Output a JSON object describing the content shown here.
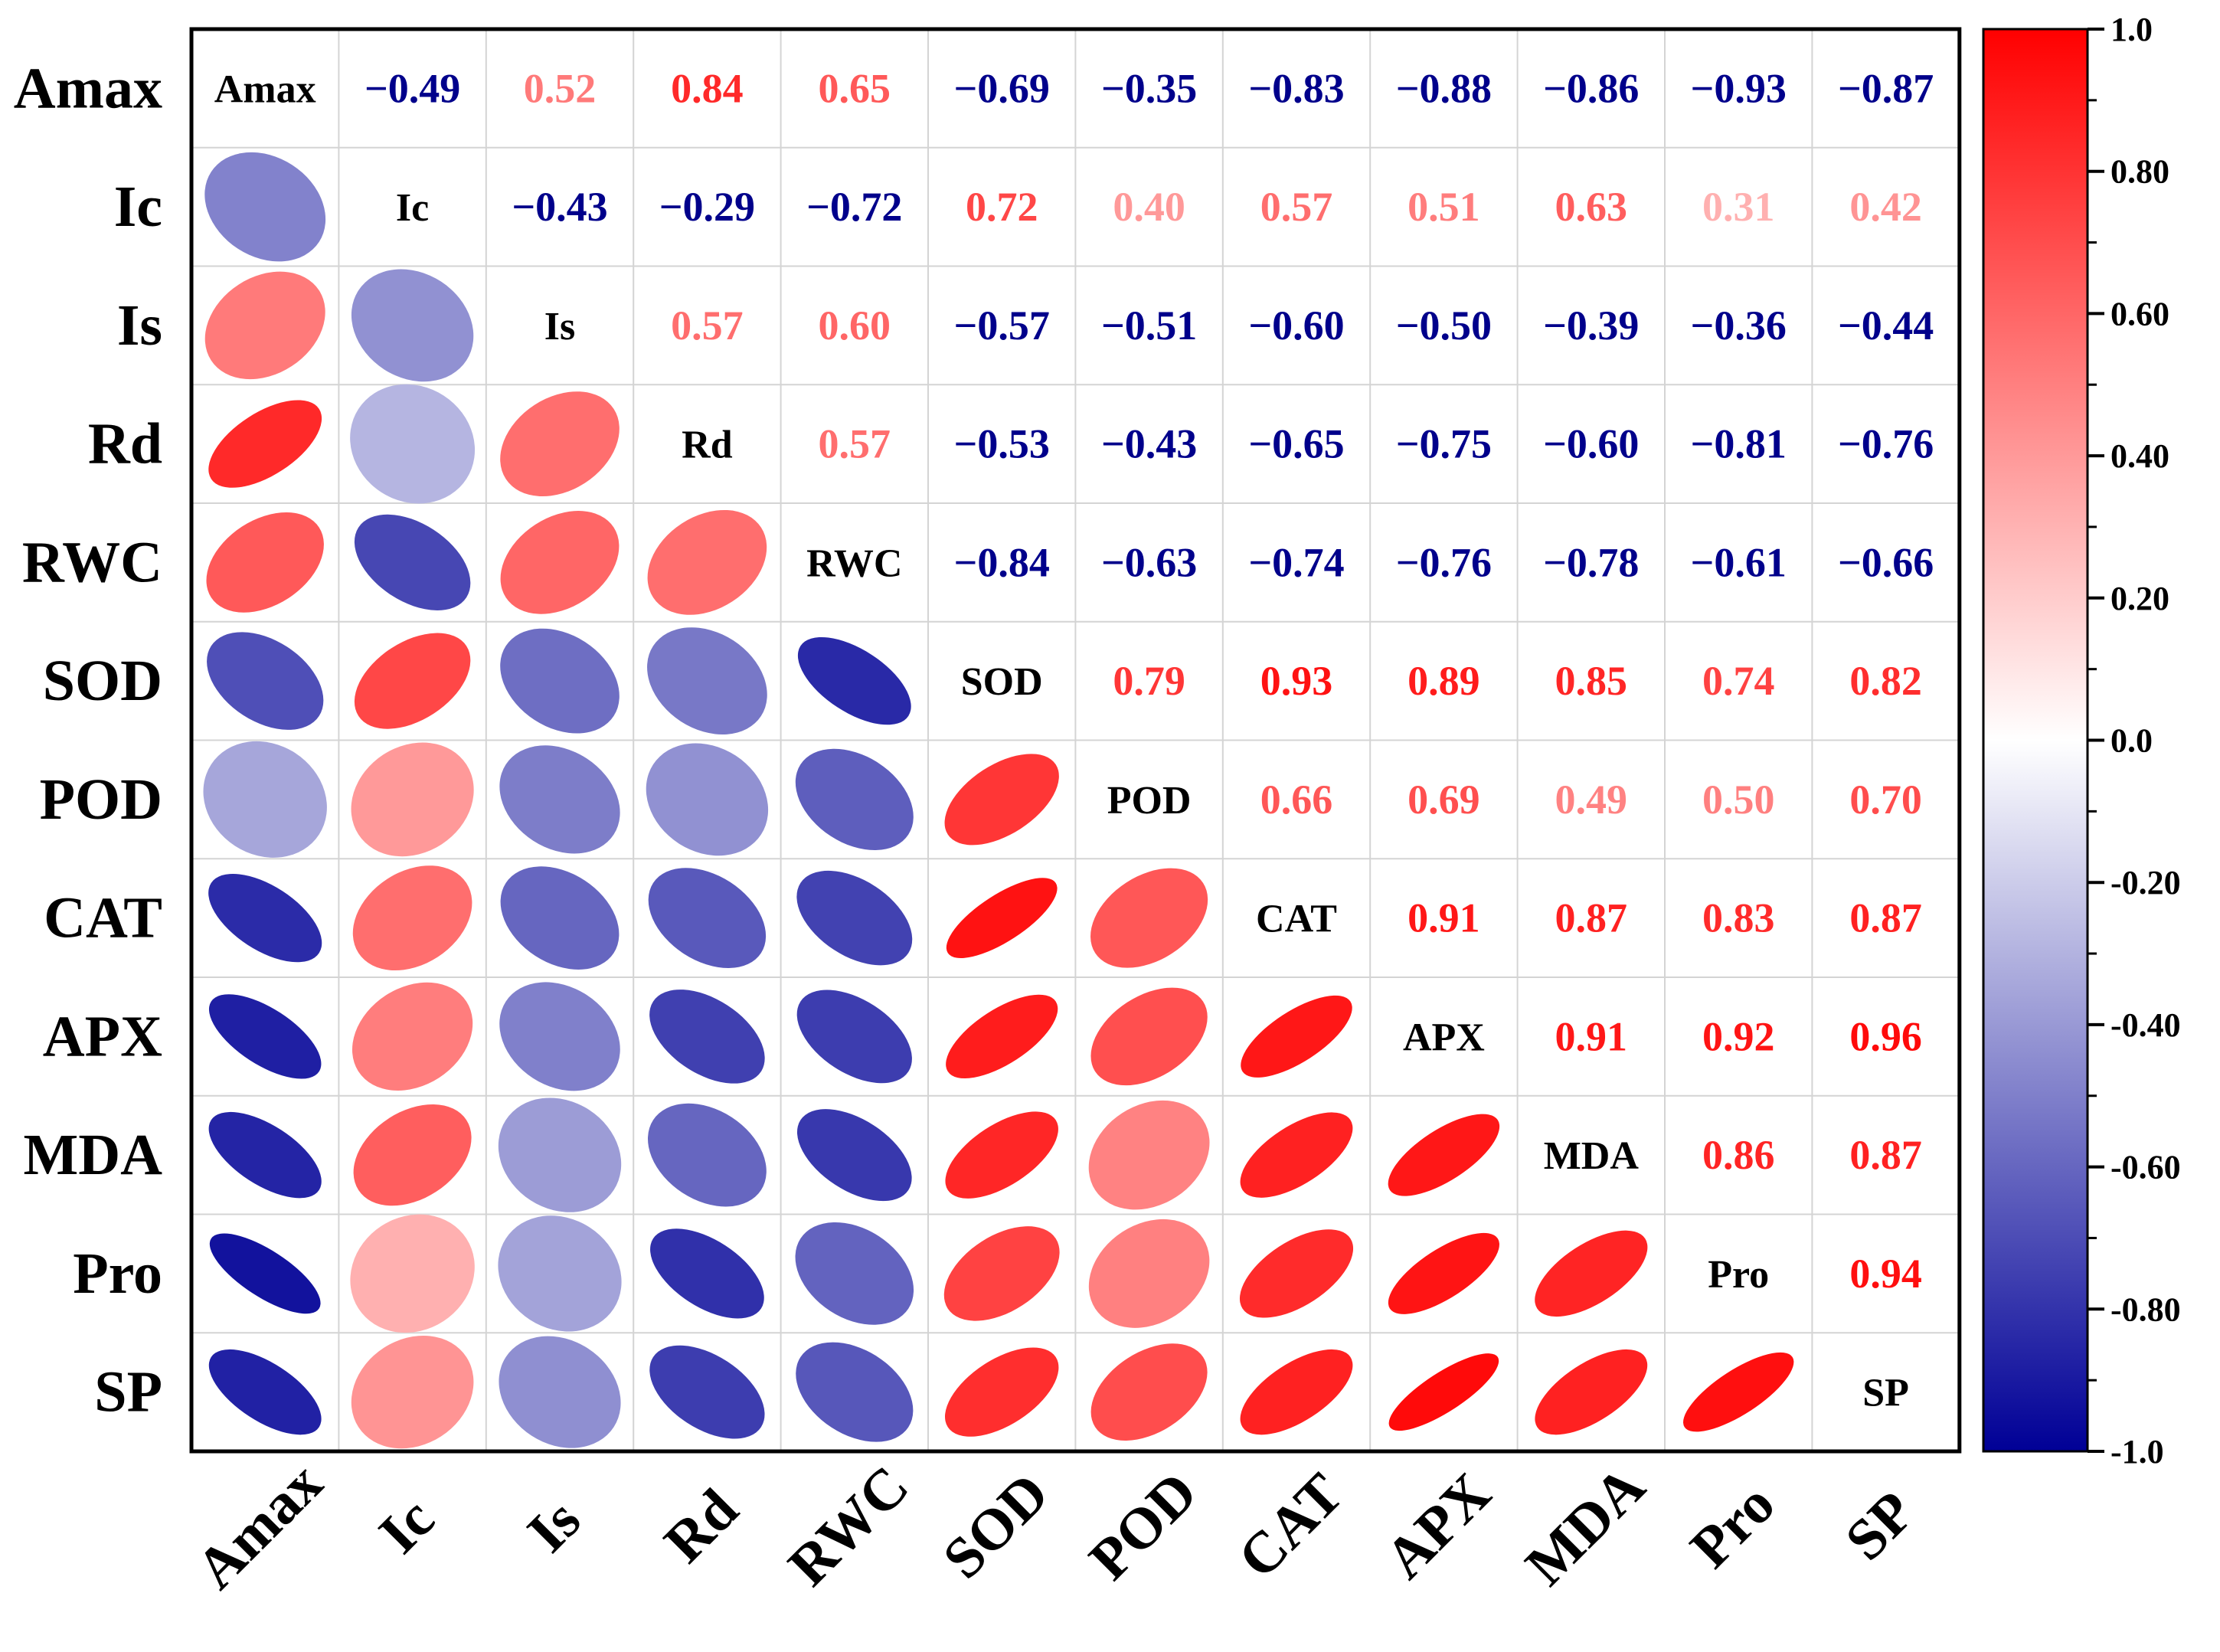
{
  "chart_data": {
    "type": "heatmap",
    "style": "correlation-ellipse-matrix",
    "variables": [
      "Amax",
      "Ic",
      "Is",
      "Rd",
      "RWC",
      "SOD",
      "POD",
      "CAT",
      "APX",
      "MDA",
      "Pro",
      "SP"
    ],
    "row_labels": [
      "Amax",
      "Ic",
      "Is",
      "Rd",
      "RWC",
      "SOD",
      "POD",
      "CAT",
      "APX",
      "MDA",
      "Pro",
      "SP"
    ],
    "col_labels": [
      "Amax",
      "Ic",
      "Is",
      "Rd",
      "RWC",
      "SOD",
      "POD",
      "CAT",
      "APX",
      "MDA",
      "Pro",
      "SP"
    ],
    "upper_triangle": "numeric values",
    "lower_triangle": "ellipses",
    "matrix": [
      [
        1.0,
        -0.49,
        0.52,
        0.84,
        0.65,
        -0.69,
        -0.35,
        -0.83,
        -0.88,
        -0.86,
        -0.93,
        -0.87
      ],
      [
        -0.49,
        1.0,
        -0.43,
        -0.29,
        -0.72,
        0.72,
        0.4,
        0.57,
        0.51,
        0.63,
        0.31,
        0.42
      ],
      [
        0.52,
        -0.43,
        1.0,
        0.57,
        0.6,
        -0.57,
        -0.51,
        -0.6,
        -0.5,
        -0.39,
        -0.36,
        -0.44
      ],
      [
        0.84,
        -0.29,
        0.57,
        1.0,
        0.57,
        -0.53,
        -0.43,
        -0.65,
        -0.75,
        -0.6,
        -0.81,
        -0.76
      ],
      [
        0.65,
        -0.72,
        0.6,
        0.57,
        1.0,
        -0.84,
        -0.63,
        -0.74,
        -0.76,
        -0.78,
        -0.61,
        -0.66
      ],
      [
        -0.69,
        0.72,
        -0.57,
        -0.53,
        -0.84,
        1.0,
        0.79,
        0.93,
        0.89,
        0.85,
        0.74,
        0.82
      ],
      [
        -0.35,
        0.4,
        -0.51,
        -0.43,
        -0.63,
        0.79,
        1.0,
        0.66,
        0.69,
        0.49,
        0.5,
        0.7
      ],
      [
        -0.83,
        0.57,
        -0.6,
        -0.65,
        -0.74,
        0.93,
        0.66,
        1.0,
        0.91,
        0.87,
        0.83,
        0.87
      ],
      [
        -0.88,
        0.51,
        -0.5,
        -0.75,
        -0.76,
        0.89,
        0.69,
        0.91,
        1.0,
        0.91,
        0.92,
        0.96
      ],
      [
        -0.86,
        0.63,
        -0.39,
        -0.6,
        -0.78,
        0.85,
        0.49,
        0.87,
        0.91,
        1.0,
        0.86,
        0.87
      ],
      [
        -0.93,
        0.31,
        -0.36,
        -0.81,
        -0.61,
        0.74,
        0.5,
        0.83,
        0.92,
        0.86,
        1.0,
        0.94
      ],
      [
        -0.87,
        0.42,
        -0.44,
        -0.76,
        -0.66,
        0.82,
        0.7,
        0.87,
        0.96,
        0.87,
        0.94,
        1.0
      ]
    ],
    "colorbar": {
      "range": [
        -1.0,
        1.0
      ],
      "ticks": [
        1.0,
        0.8,
        0.6,
        0.4,
        0.2,
        0.0,
        -0.2,
        -0.4,
        -0.6,
        -0.8,
        -1.0
      ],
      "tick_labels": [
        "1.0",
        "0.80",
        "0.60",
        "0.40",
        "0.20",
        "0.0",
        "-0.20",
        "-0.40",
        "-0.60",
        "-0.80",
        "-1.0"
      ],
      "colors": {
        "negative": "#000096",
        "zero": "#ffffff",
        "positive": "#ff0000"
      }
    }
  }
}
